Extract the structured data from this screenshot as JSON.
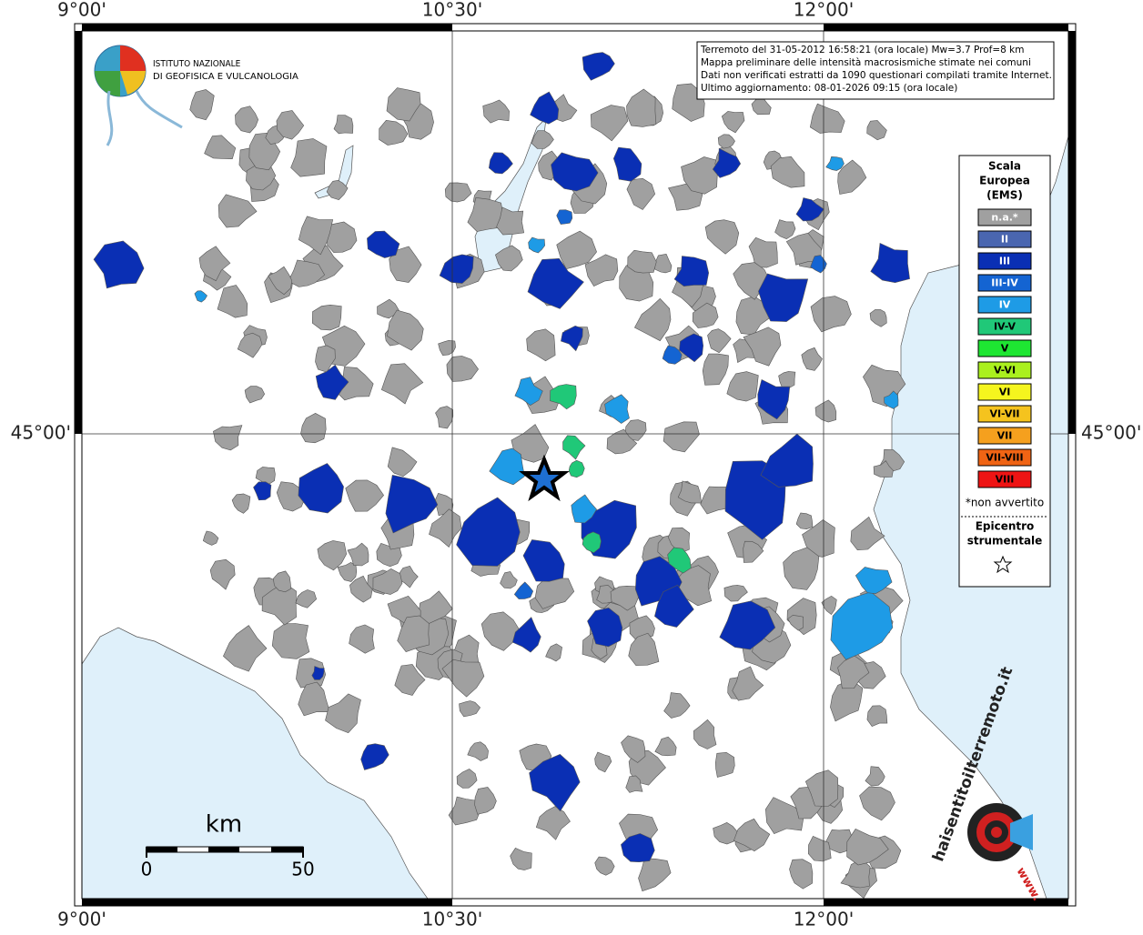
{
  "map": {
    "lon_labels": [
      "9°00'",
      "10°30'",
      "12°00'"
    ],
    "lat_labels": [
      "45°00'"
    ]
  },
  "logo": {
    "line1": "ISTITUTO NAZIONALE",
    "line2": "DI GEOFISICA E VULCANOLOGIA"
  },
  "info": [
    "Terremoto del 31-05-2012 16:58:21 (ora locale) Mw=3.7 Prof=8 km",
    "Mappa preliminare delle intensità macrosismiche stimate nei comuni",
    "Dati non verificati estratti da 1090 questionari compilati tramite Internet.",
    "Ultimo aggiornamento: 08-01-2026 09:15 (ora locale)"
  ],
  "legend": {
    "title": [
      "Scala",
      "Europea",
      "(EMS)"
    ],
    "classes": [
      {
        "label": "n.a.*",
        "color": "#a0a0a0"
      },
      {
        "label": "II",
        "color": "#4a66b0"
      },
      {
        "label": "III",
        "color": "#0a2fb4"
      },
      {
        "label": "III-IV",
        "color": "#1464d2"
      },
      {
        "label": "IV",
        "color": "#1e9be6"
      },
      {
        "label": "IV-V",
        "color": "#20c878"
      },
      {
        "label": "V",
        "color": "#1ee632"
      },
      {
        "label": "V-VI",
        "color": "#aaf01e"
      },
      {
        "label": "VI",
        "color": "#f5f51e"
      },
      {
        "label": "VI-VII",
        "color": "#f5c31e"
      },
      {
        "label": "VII",
        "color": "#f5a01e"
      },
      {
        "label": "VII-VIII",
        "color": "#f06414"
      },
      {
        "label": "VIII",
        "color": "#ee1414"
      }
    ],
    "note": "*non avvertito",
    "epicenter": [
      "Epicentro",
      "strumentale"
    ]
  },
  "scale_bar": {
    "unit": "km",
    "labels": [
      "0",
      "50"
    ]
  },
  "site_logo": {
    "text": "haisentitoilterremoto.it",
    "www": "www."
  }
}
